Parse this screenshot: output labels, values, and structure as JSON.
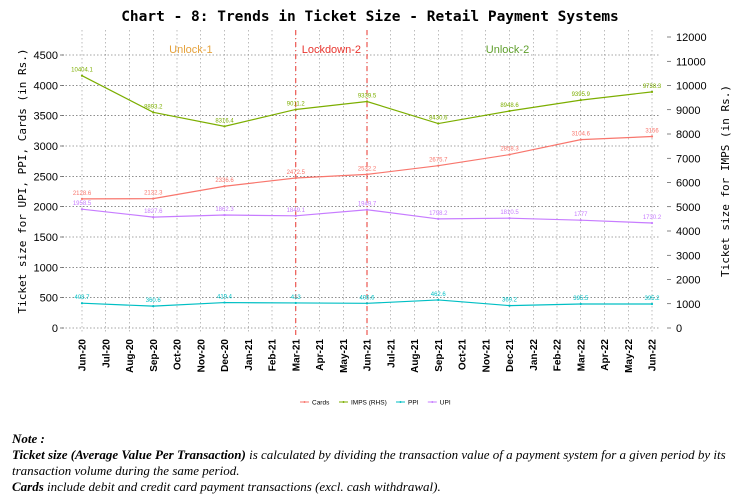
{
  "chart_data": {
    "type": "line",
    "title": "Chart - 8: Trends in Ticket Size - Retail Payment Systems",
    "ylabel_left": "Ticket size for UPI, PPI, Cards (in Rs.)",
    "ylabel_right": "Ticket size for IMPS (in Rs.)",
    "ylim_left": [
      0,
      4500
    ],
    "ylim_right": [
      0,
      12000
    ],
    "yticks_left": [
      "0",
      "500",
      "1000",
      "1500",
      "2000",
      "2500",
      "3000",
      "3500",
      "4000",
      "4500"
    ],
    "yticks_right": [
      "0",
      "1000",
      "2000",
      "3000",
      "4000",
      "5000",
      "6000",
      "7000",
      "8000",
      "9000",
      "10000",
      "11000",
      "12000"
    ],
    "x": [
      "Jun-20",
      "Jul-20",
      "Aug-20",
      "Sep-20",
      "Oct-20",
      "Nov-20",
      "Dec-20",
      "Jan-21",
      "Feb-21",
      "Mar-21",
      "Apr-21",
      "May-21",
      "Jun-21",
      "Jul-21",
      "Aug-21",
      "Sep-21",
      "Oct-21",
      "Nov-21",
      "Dec-21",
      "Jan-22",
      "Feb-22",
      "Mar-22",
      "Apr-22",
      "May-22",
      "Jun-22"
    ],
    "series": [
      {
        "name": "Cards",
        "axis": "left",
        "color": "#F8766D",
        "points": [
          [
            "Jun-20",
            2128.6
          ],
          [
            "Sep-20",
            2132.3
          ],
          [
            "Dec-20",
            2336.6
          ],
          [
            "Mar-21",
            2472.5
          ],
          [
            "Jun-21",
            2532.2
          ],
          [
            "Sep-21",
            2675.7
          ],
          [
            "Dec-21",
            2858.3
          ],
          [
            "Mar-22",
            3104.6
          ],
          [
            "Jun-22",
            3156
          ]
        ],
        "labels": [
          "2128.6",
          "2132.3",
          "2336.6",
          "2472.5",
          "2532.2",
          "2675.7",
          "2858.3",
          "3104.6",
          "3156"
        ]
      },
      {
        "name": "IMPS (RHS)",
        "axis": "right",
        "color": "#7CAE00",
        "points": [
          [
            "Jun-20",
            10404.1
          ],
          [
            "Sep-20",
            8893.2
          ],
          [
            "Dec-20",
            8316.4
          ],
          [
            "Mar-21",
            9011.2
          ],
          [
            "Jun-21",
            9339.5
          ],
          [
            "Sep-21",
            8430.6
          ],
          [
            "Dec-21",
            8948.6
          ],
          [
            "Mar-22",
            9395.9
          ],
          [
            "Jun-22",
            9738.3
          ]
        ],
        "labels": [
          "10404.1",
          "8893.2",
          "8316.4",
          "9011.2",
          "9339.5",
          "8430.6",
          "8948.6",
          "9395.9",
          "9738.3"
        ]
      },
      {
        "name": "PPI",
        "axis": "left",
        "color": "#00BFC4",
        "points": [
          [
            "Jun-20",
            408.7
          ],
          [
            "Sep-20",
            360.6
          ],
          [
            "Dec-20",
            419.4
          ],
          [
            "Mar-21",
            413
          ],
          [
            "Jun-21",
            406.6
          ],
          [
            "Sep-21",
            462.6
          ],
          [
            "Dec-21",
            369.2
          ],
          [
            "Mar-22",
            395.5
          ],
          [
            "Jun-22",
            395.2
          ]
        ],
        "labels": [
          "408.7",
          "360.6",
          "419.4",
          "413",
          "406.6",
          "462.6",
          "369.2",
          "395.5",
          "395.2"
        ]
      },
      {
        "name": "UPI",
        "axis": "left",
        "color": "#C77CFF",
        "points": [
          [
            "Jun-20",
            1958.5
          ],
          [
            "Sep-20",
            1827.6
          ],
          [
            "Dec-20",
            1862.3
          ],
          [
            "Mar-21",
            1849.1
          ],
          [
            "Jun-21",
            1949.7
          ],
          [
            "Sep-21",
            1798.2
          ],
          [
            "Dec-21",
            1810.5
          ],
          [
            "Mar-22",
            1777
          ],
          [
            "Jun-22",
            1730.2
          ]
        ],
        "labels": [
          "1958.5",
          "1827.6",
          "1862.3",
          "1849.1",
          "1949.7",
          "1798.2",
          "1810.5",
          "1777",
          "1730.2"
        ]
      }
    ],
    "phases": [
      {
        "label": "Unlock-1",
        "color": "#E6A23C"
      },
      {
        "label": "Lockdown-2",
        "color": "#E8352E"
      },
      {
        "label": "Unlock-2",
        "color": "#5E9E2B"
      }
    ],
    "phase_boundaries": [
      "Mar-21",
      "Jun-21"
    ],
    "grid": true,
    "legend_position": "bottom"
  },
  "notes": {
    "heading": "Note :",
    "line1_bold": "Ticket size (Average Value Per Transaction)",
    "line1_rest": " is calculated by dividing the transaction value of a payment system for a given period by its transaction volume during the same period.",
    "line2_bold": "Cards",
    "line2_rest": " include debit and credit card payment transactions (excl. cash withdrawal)."
  }
}
